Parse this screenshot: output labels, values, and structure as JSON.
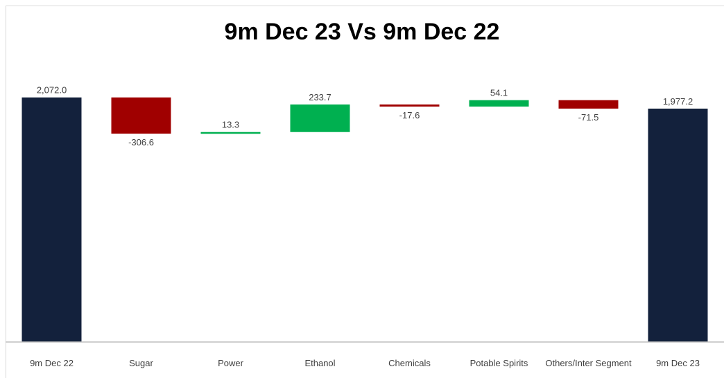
{
  "chart_data": {
    "type": "bar",
    "subtype": "waterfall",
    "title": "9m Dec 23 Vs 9m Dec 22",
    "xlabel": "",
    "ylabel": "",
    "ylim": [
      0,
      2150
    ],
    "grid": false,
    "legend": "none",
    "categories": [
      "9m Dec 22",
      "Sugar",
      "Power",
      "Ethanol",
      "Chemicals",
      "Potable Spirits",
      "Others/Inter Segment",
      "9m Dec 23"
    ],
    "values": [
      2072.0,
      -306.6,
      13.3,
      233.7,
      -17.6,
      54.1,
      -71.5,
      1977.2
    ],
    "value_labels": [
      "2,072.0",
      "-306.6",
      "13.3",
      "233.7",
      "-17.6",
      "54.1",
      "-71.5",
      "1,977.2"
    ],
    "kinds": [
      "total",
      "delta",
      "delta",
      "delta",
      "delta",
      "delta",
      "delta",
      "total"
    ],
    "colors": {
      "total": "#13213c",
      "increase": "#00b050",
      "decrease": "#a00000",
      "axis": "#bfbfbf",
      "text": "#404040"
    }
  }
}
